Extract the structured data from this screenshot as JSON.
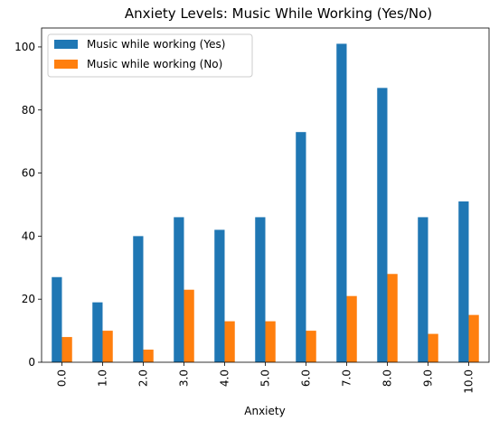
{
  "chart_data": {
    "type": "bar",
    "title": "Anxiety Levels: Music While Working (Yes/No)",
    "xlabel": "Anxiety",
    "ylabel": "",
    "categories": [
      "0.0",
      "1.0",
      "2.0",
      "3.0",
      "4.0",
      "5.0",
      "6.0",
      "7.0",
      "8.0",
      "9.0",
      "10.0"
    ],
    "series": [
      {
        "name": "Music while working (Yes)",
        "color": "#1f77b4",
        "values": [
          27,
          19,
          40,
          46,
          42,
          46,
          73,
          101,
          87,
          46,
          51
        ]
      },
      {
        "name": "Music while working (No)",
        "color": "#ff7f0e",
        "values": [
          8,
          10,
          4,
          23,
          13,
          13,
          10,
          21,
          28,
          9,
          15
        ]
      }
    ],
    "ylim": [
      0,
      106
    ],
    "yticks": [
      0,
      20,
      40,
      60,
      80,
      100
    ],
    "legend_position": "top-left",
    "grid": false
  }
}
